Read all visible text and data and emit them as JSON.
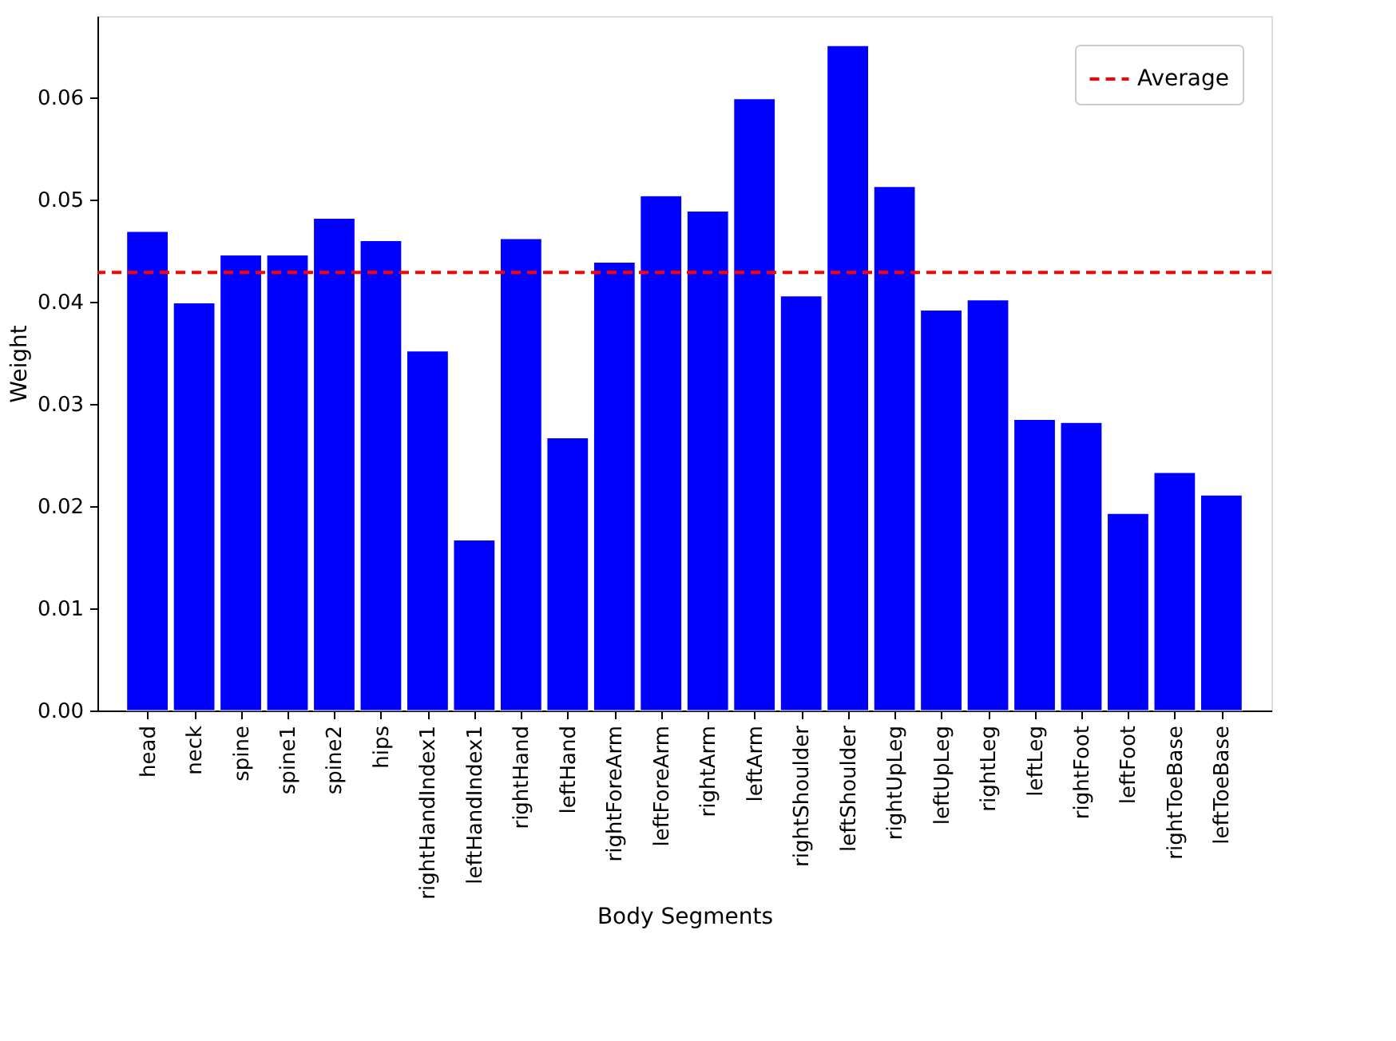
{
  "chart_data": {
    "type": "bar",
    "xlabel": "Body Segments",
    "ylabel": "Weight",
    "categories": [
      "head",
      "neck",
      "spine",
      "spine1",
      "spine2",
      "hips",
      "rightHandIndex1",
      "leftHandIndex1",
      "rightHand",
      "leftHand",
      "rightForeArm",
      "leftForeArm",
      "rightArm",
      "leftArm",
      "rightShoulder",
      "leftShoulder",
      "rightUpLeg",
      "leftUpLeg",
      "rightLeg",
      "leftLeg",
      "rightFoot",
      "leftFoot",
      "rightToeBase",
      "leftToeBase"
    ],
    "values": [
      0.0469,
      0.0399,
      0.0446,
      0.0446,
      0.0482,
      0.046,
      0.0352,
      0.0167,
      0.0462,
      0.0267,
      0.0439,
      0.0504,
      0.0489,
      0.0599,
      0.0406,
      0.0651,
      0.0513,
      0.0392,
      0.0402,
      0.0285,
      0.0282,
      0.0193,
      0.0233,
      0.0211
    ],
    "color": "#0000ff",
    "ylim": [
      0,
      0.068
    ],
    "yticks": [
      {
        "value": 0,
        "label": "0.00"
      },
      {
        "value": 0.01,
        "label": "0.01"
      },
      {
        "value": 0.02,
        "label": "0.02"
      },
      {
        "value": 0.03,
        "label": "0.03"
      },
      {
        "value": 0.04,
        "label": "0.04"
      },
      {
        "value": 0.05,
        "label": "0.05"
      },
      {
        "value": 0.06,
        "label": "0.06"
      }
    ],
    "ref_lines": [
      {
        "axis": "y",
        "value": 0.0429,
        "label": "Average",
        "color": "#ff0000",
        "line_style": "dashed"
      }
    ],
    "legend": "top right",
    "grid": false
  }
}
